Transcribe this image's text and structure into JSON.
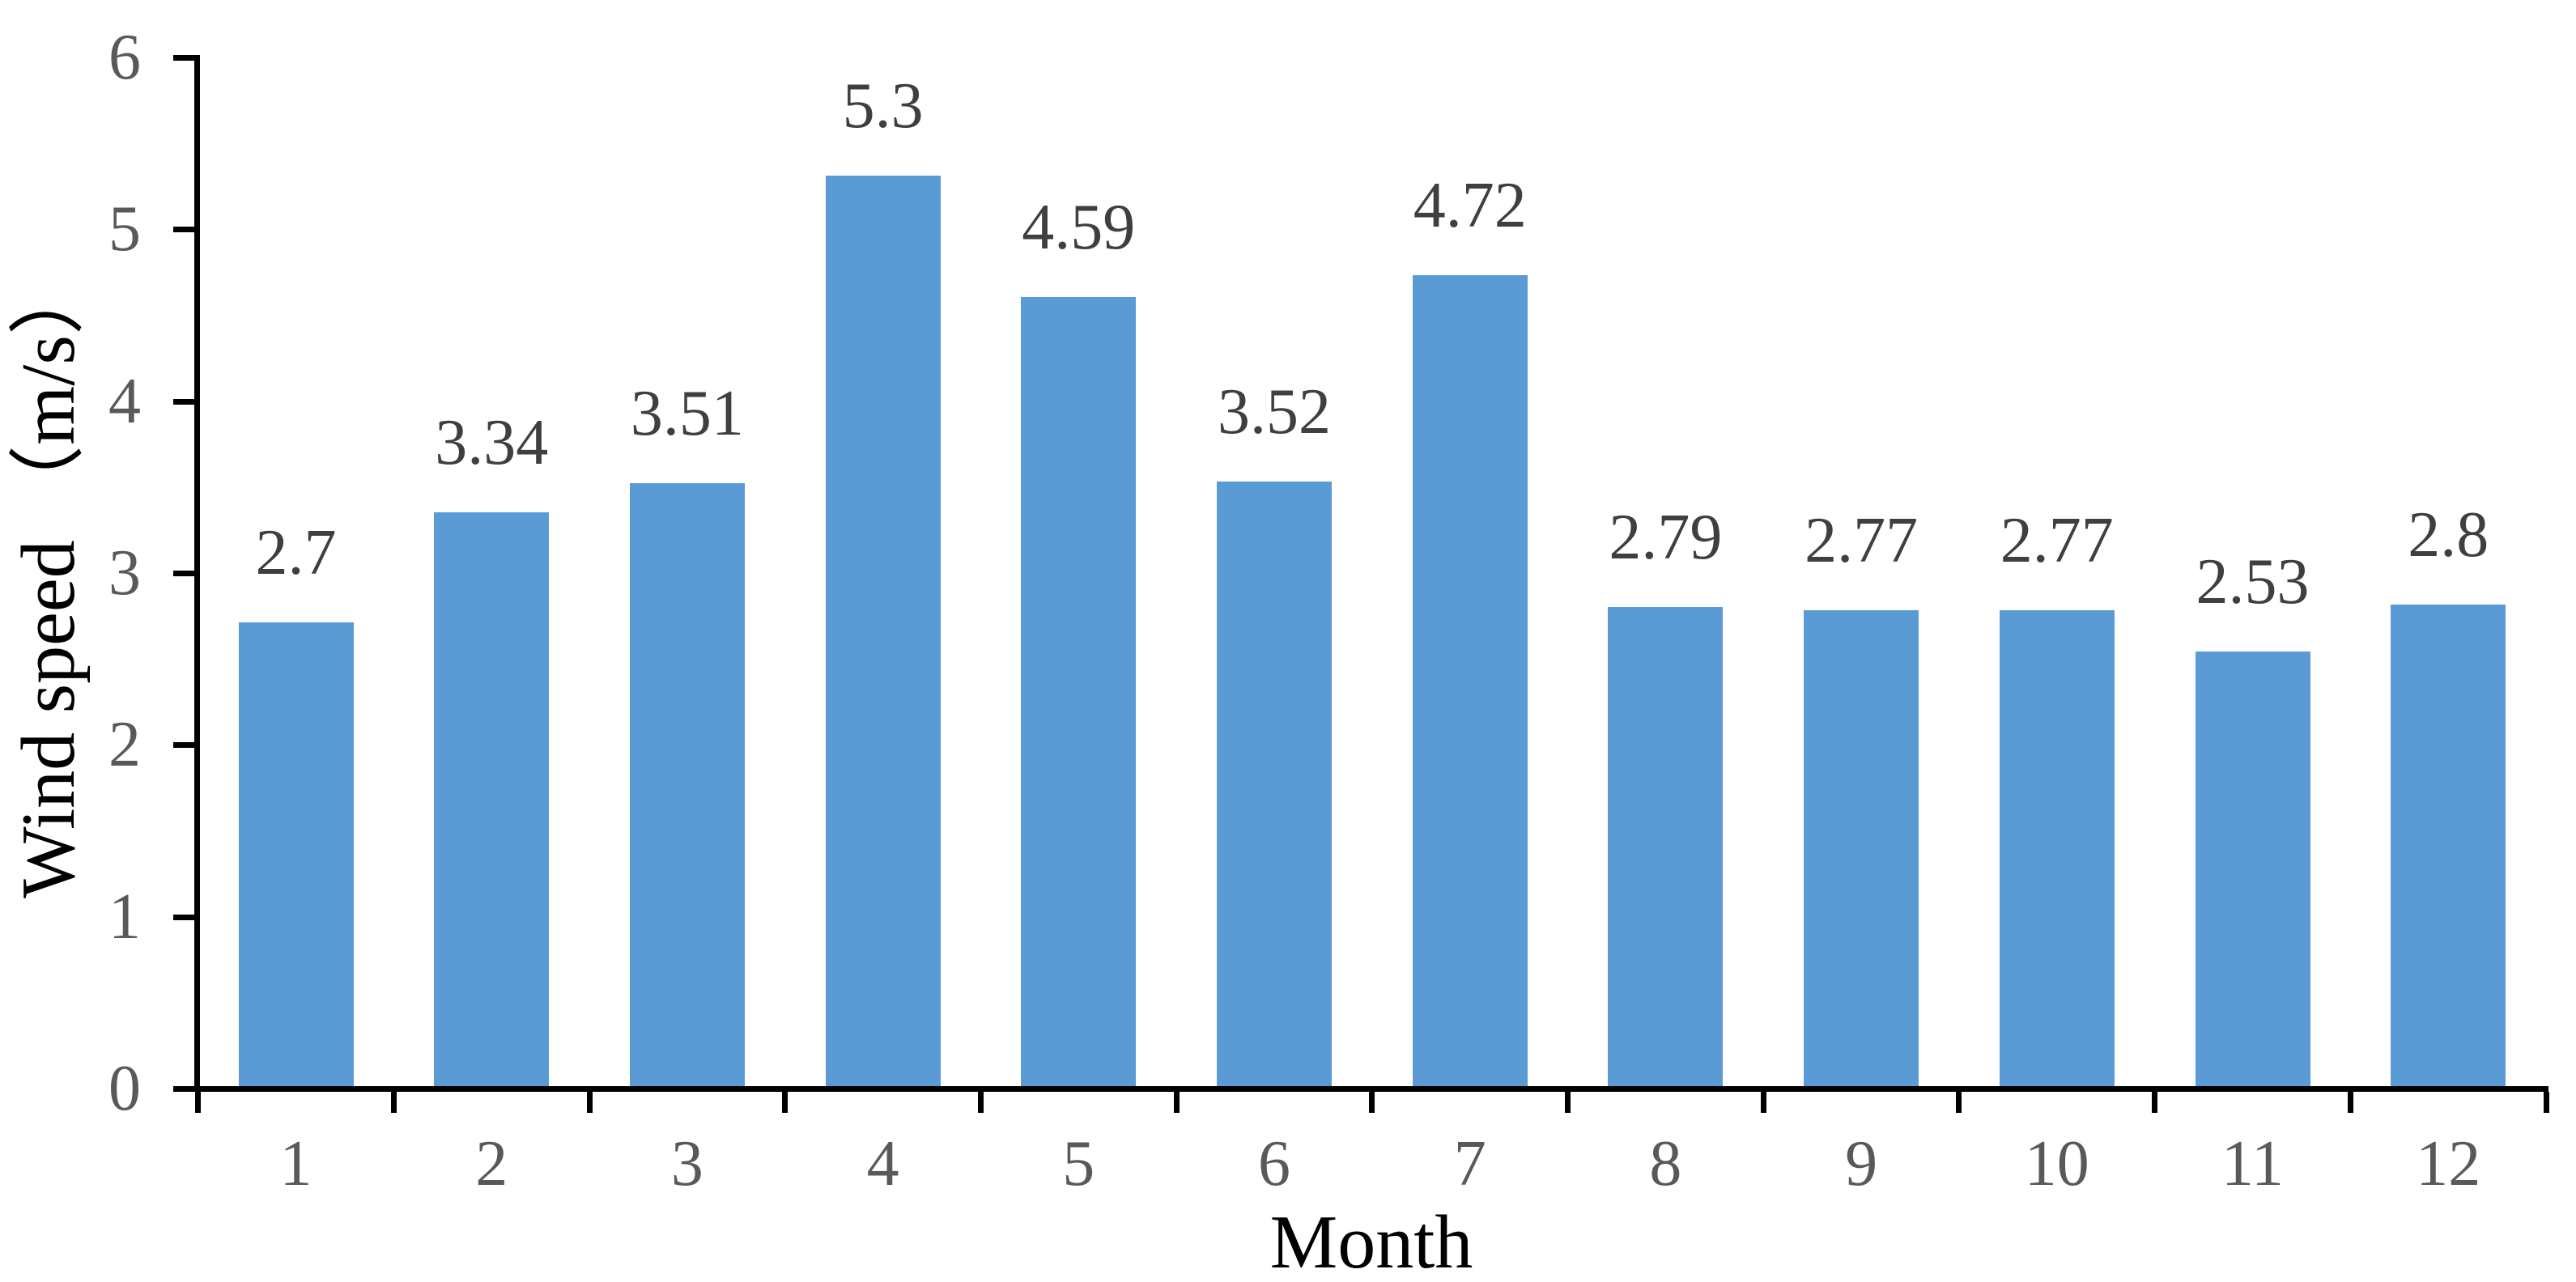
{
  "chart_data": {
    "type": "bar",
    "title": "",
    "categories": [
      "1",
      "2",
      "3",
      "4",
      "5",
      "6",
      "7",
      "8",
      "9",
      "10",
      "11",
      "12"
    ],
    "values": [
      2.7,
      3.34,
      3.51,
      5.3,
      4.59,
      3.52,
      4.72,
      2.79,
      2.77,
      2.77,
      2.53,
      2.8
    ],
    "value_labels": [
      "2.7",
      "3.34",
      "3.51",
      "5.3",
      "4.59",
      "3.52",
      "4.72",
      "2.79",
      "2.77",
      "2.77",
      "2.53",
      "2.8"
    ],
    "xlabel": "Month",
    "ylabel": "Wind speed （m/s）",
    "ylim": [
      0,
      6
    ],
    "yticks": [
      "0",
      "1",
      "2",
      "3",
      "4",
      "5",
      "6"
    ],
    "grid": false,
    "legend": null,
    "layout": {
      "legend_position": "none",
      "data_labels": "above-bars",
      "x_ticks": "category-boundaries",
      "y_ticks": "outside-left"
    },
    "colors": {
      "bar": "#5B9BD5",
      "data_label": "#3F3F3F",
      "tick_label": "#595959",
      "axis": "#000000",
      "background": "#FFFFFF"
    }
  }
}
